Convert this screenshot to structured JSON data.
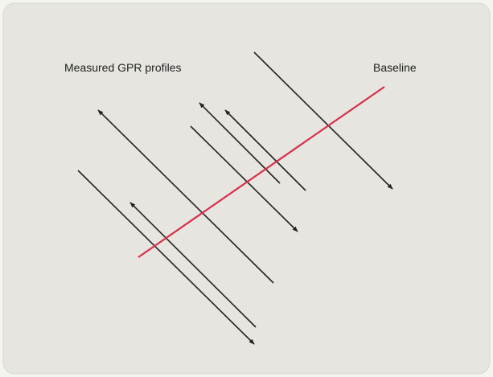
{
  "labels": {
    "profiles": "Measured GPR profiles",
    "baseline": "Baseline"
  }
}
